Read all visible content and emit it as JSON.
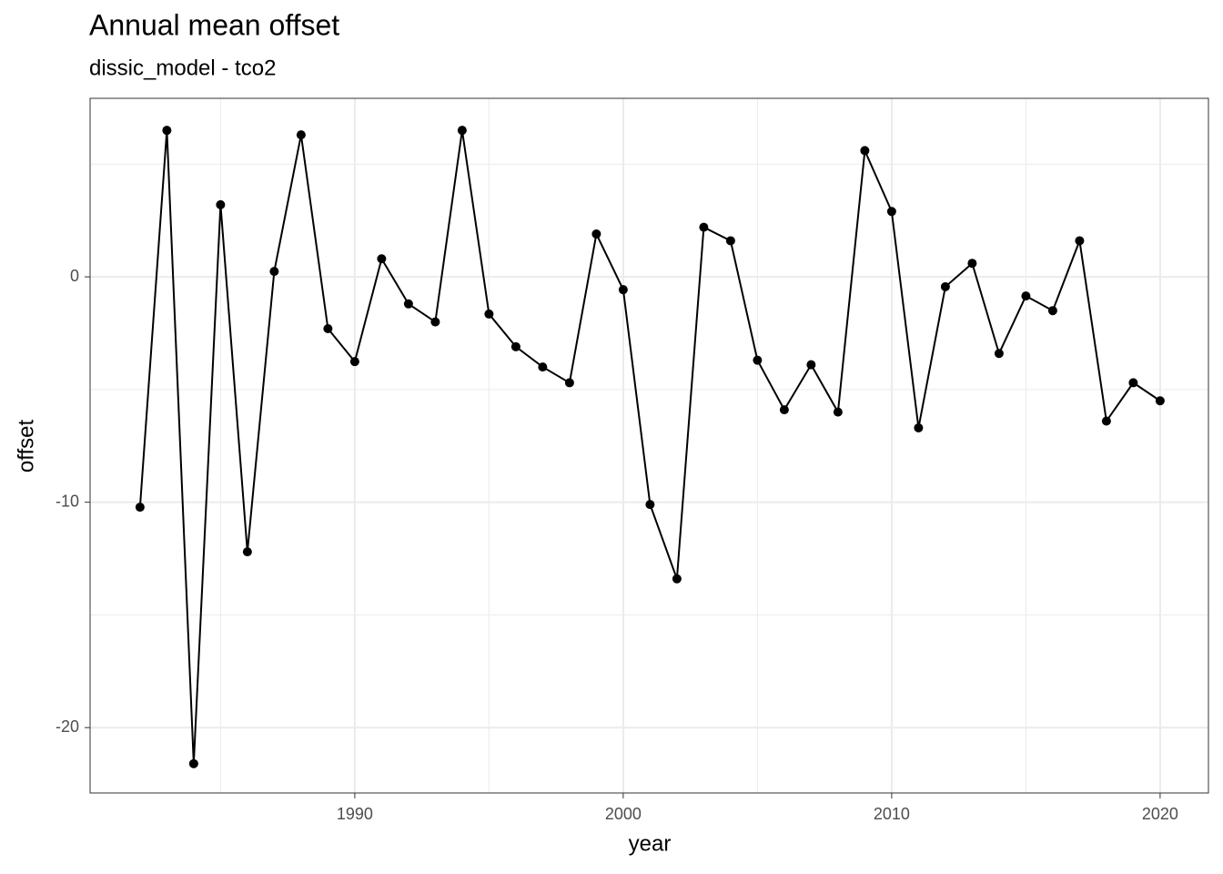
{
  "chart_data": {
    "type": "line",
    "title": "Annual mean offset",
    "subtitle": "dissic_model - tco2",
    "x_label": "year",
    "y_label": "offset",
    "x": [
      1982,
      1983,
      1984,
      1985,
      1986,
      1987,
      1988,
      1989,
      1990,
      1991,
      1992,
      1993,
      1994,
      1995,
      1996,
      1997,
      1998,
      1999,
      2000,
      2001,
      2002,
      2003,
      2004,
      2005,
      2006,
      2007,
      2008,
      2009,
      2010,
      2011,
      2012,
      2013,
      2014,
      2015,
      2016,
      2017,
      2018,
      2019,
      2020
    ],
    "series": [
      {
        "name": "offset",
        "color": "#000000",
        "values": [
          -10.22,
          6.5,
          -21.6,
          3.2,
          -12.2,
          0.24,
          6.3,
          -2.3,
          -3.76,
          0.8,
          -1.2,
          -2.0,
          6.5,
          -1.65,
          -3.1,
          -4.0,
          -4.7,
          1.9,
          -0.57,
          -10.1,
          -13.4,
          2.2,
          1.6,
          -3.7,
          -5.9,
          -3.9,
          -6.0,
          5.6,
          2.9,
          -6.7,
          -0.44,
          0.6,
          -3.4,
          -0.85,
          -1.5,
          1.6,
          -6.4,
          -4.7,
          -5.5
        ]
      }
    ],
    "xlim": [
      1980.14,
      2021.8
    ],
    "ylim": [
      -22.9,
      7.92
    ],
    "xticks": [
      1990,
      2000,
      2010,
      2020
    ],
    "yticks": [
      -20,
      -10,
      0
    ],
    "minor_xticks": [
      1985,
      1995,
      2005,
      2015
    ],
    "minor_yticks": [
      -15,
      -5,
      5
    ],
    "grid": true
  }
}
